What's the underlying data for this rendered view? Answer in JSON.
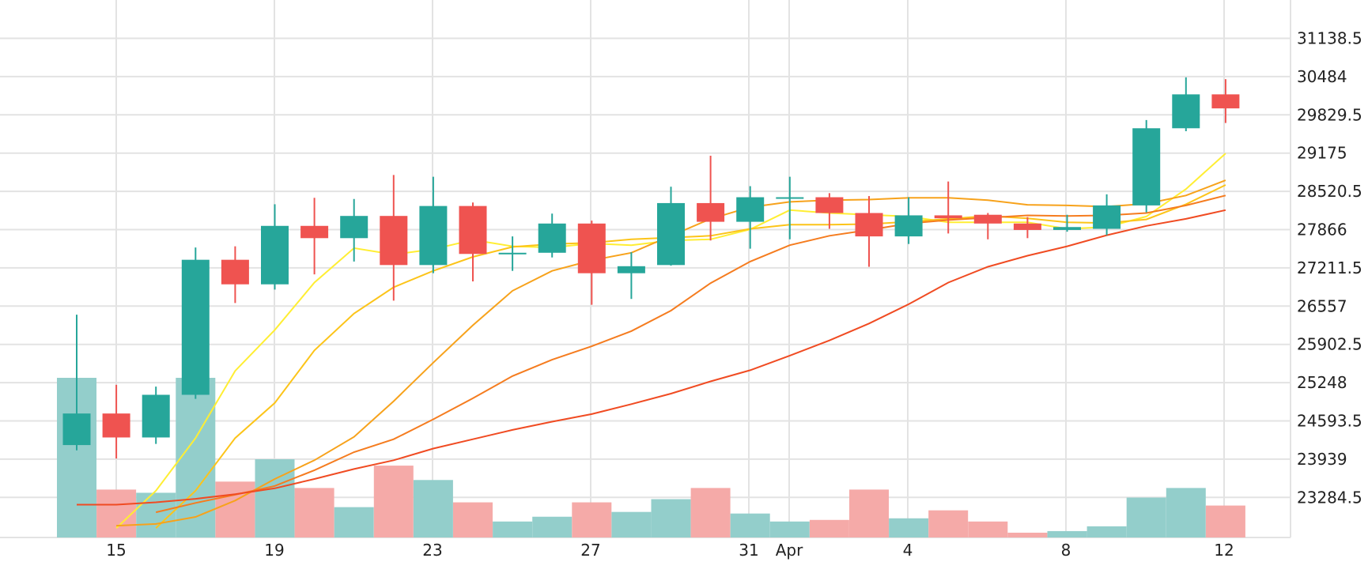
{
  "chart_data": {
    "type": "candlestick",
    "x_tick_labels": [
      "15",
      "19",
      "23",
      "27",
      "31",
      "Apr",
      "4",
      "8",
      "12"
    ],
    "y_tick_labels": [
      "31138.5",
      "30484",
      "29829.5",
      "29175",
      "28520.5",
      "27866",
      "27211.5",
      "26557",
      "25902.5",
      "25248",
      "24593.5",
      "23939",
      "23284.5"
    ],
    "ylim": [
      22800,
      31600
    ],
    "grid": true,
    "colors": {
      "up": "#26a69a",
      "down": "#ef5350",
      "up_volume": "#93cecb",
      "down_volume": "#f5aaa8",
      "grid": "#e3e3e3",
      "ma_lines": [
        "#ffee33",
        "#fcc419",
        "#f7a21b",
        "#f57c1f",
        "#f04b22"
      ]
    },
    "candles": [
      {
        "open": 24180,
        "high": 26410,
        "low": 24090,
        "close": 24720,
        "volume": 100
      },
      {
        "open": 24720,
        "high": 25210,
        "low": 23950,
        "close": 24310,
        "volume": 30
      },
      {
        "open": 24310,
        "high": 25180,
        "low": 24200,
        "close": 25040,
        "volume": 28
      },
      {
        "open": 25040,
        "high": 27560,
        "low": 24970,
        "close": 27350,
        "volume": 100
      },
      {
        "open": 27350,
        "high": 27580,
        "low": 26610,
        "close": 26930,
        "volume": 35
      },
      {
        "open": 26930,
        "high": 28300,
        "low": 26840,
        "close": 27930,
        "volume": 49
      },
      {
        "open": 27930,
        "high": 28410,
        "low": 27100,
        "close": 27720,
        "volume": 31
      },
      {
        "open": 27720,
        "high": 28390,
        "low": 27320,
        "close": 28100,
        "volume": 19
      },
      {
        "open": 28100,
        "high": 28800,
        "low": 26650,
        "close": 27260,
        "volume": 45
      },
      {
        "open": 27260,
        "high": 28770,
        "low": 27120,
        "close": 28270,
        "volume": 36
      },
      {
        "open": 28270,
        "high": 28330,
        "low": 26980,
        "close": 27450,
        "volume": 22
      },
      {
        "open": 27470,
        "high": 27750,
        "low": 27160,
        "close": 27470,
        "volume": 10
      },
      {
        "open": 27470,
        "high": 28140,
        "low": 27390,
        "close": 27970,
        "volume": 13
      },
      {
        "open": 27970,
        "high": 28020,
        "low": 26580,
        "close": 27120,
        "volume": 22
      },
      {
        "open": 27120,
        "high": 27480,
        "low": 26680,
        "close": 27240,
        "volume": 16
      },
      {
        "open": 27260,
        "high": 28600,
        "low": 27250,
        "close": 28320,
        "volume": 24
      },
      {
        "open": 28320,
        "high": 29130,
        "low": 27680,
        "close": 28000,
        "volume": 31
      },
      {
        "open": 28000,
        "high": 28610,
        "low": 27540,
        "close": 28420,
        "volume": 15
      },
      {
        "open": 28420,
        "high": 28770,
        "low": 27700,
        "close": 28420,
        "volume": 10
      },
      {
        "open": 28420,
        "high": 28490,
        "low": 27880,
        "close": 28150,
        "volume": 11
      },
      {
        "open": 28150,
        "high": 28440,
        "low": 27230,
        "close": 27750,
        "volume": 30
      },
      {
        "open": 27750,
        "high": 28420,
        "low": 27620,
        "close": 28110,
        "volume": 12
      },
      {
        "open": 28110,
        "high": 28690,
        "low": 27800,
        "close": 28060,
        "volume": 17
      },
      {
        "open": 28120,
        "high": 28150,
        "low": 27700,
        "close": 27970,
        "volume": 10
      },
      {
        "open": 27970,
        "high": 28080,
        "low": 27720,
        "close": 27860,
        "volume": 3
      },
      {
        "open": 27860,
        "high": 28120,
        "low": 27830,
        "close": 27910,
        "volume": 4
      },
      {
        "open": 27880,
        "high": 28470,
        "low": 27770,
        "close": 28280,
        "volume": 7
      },
      {
        "open": 28280,
        "high": 29740,
        "low": 28160,
        "close": 29600,
        "volume": 25
      },
      {
        "open": 29600,
        "high": 30470,
        "low": 29550,
        "close": 30180,
        "volume": 31
      },
      {
        "open": 30180,
        "high": 30440,
        "low": 29690,
        "close": 29940,
        "volume": 20
      }
    ],
    "moving_averages": [
      {
        "values": [
          null,
          22760,
          23400,
          24300,
          25450,
          26150,
          26960,
          27550,
          27440,
          27530,
          27690,
          27580,
          27560,
          27630,
          27600,
          27680,
          27700,
          27870,
          28200,
          28150,
          28120,
          28090,
          27990,
          27990,
          27990,
          27880,
          27910,
          28090,
          28560,
          29170
        ]
      },
      {
        "values": [
          null,
          null,
          22760,
          23400,
          24300,
          24900,
          25800,
          26430,
          26880,
          27160,
          27400,
          27570,
          27620,
          27640,
          27700,
          27730,
          27760,
          27880,
          27950,
          27950,
          27960,
          28000,
          28050,
          28100,
          28060,
          27990,
          27980,
          28040,
          28300,
          28630
        ]
      },
      {
        "values": [
          null,
          22800,
          22830,
          22950,
          23230,
          23600,
          23920,
          24320,
          24930,
          25590,
          26230,
          26820,
          27160,
          27340,
          27470,
          27760,
          28050,
          28250,
          28340,
          28370,
          28380,
          28410,
          28410,
          28370,
          28290,
          28280,
          28260,
          28310,
          28450,
          28710
        ]
      },
      {
        "values": [
          null,
          null,
          23030,
          23190,
          23330,
          23480,
          23750,
          24060,
          24280,
          24620,
          24980,
          25360,
          25640,
          25870,
          26130,
          26480,
          26950,
          27320,
          27600,
          27760,
          27860,
          27970,
          28030,
          28070,
          28110,
          28100,
          28110,
          28150,
          28280,
          28450
        ]
      },
      {
        "values": [
          23160,
          23160,
          23200,
          23260,
          23340,
          23440,
          23600,
          23770,
          23920,
          24120,
          24280,
          24440,
          24580,
          24710,
          24880,
          25060,
          25270,
          25460,
          25710,
          25970,
          26260,
          26590,
          26960,
          27230,
          27420,
          27580,
          27770,
          27930,
          28050,
          28200
        ]
      }
    ]
  }
}
